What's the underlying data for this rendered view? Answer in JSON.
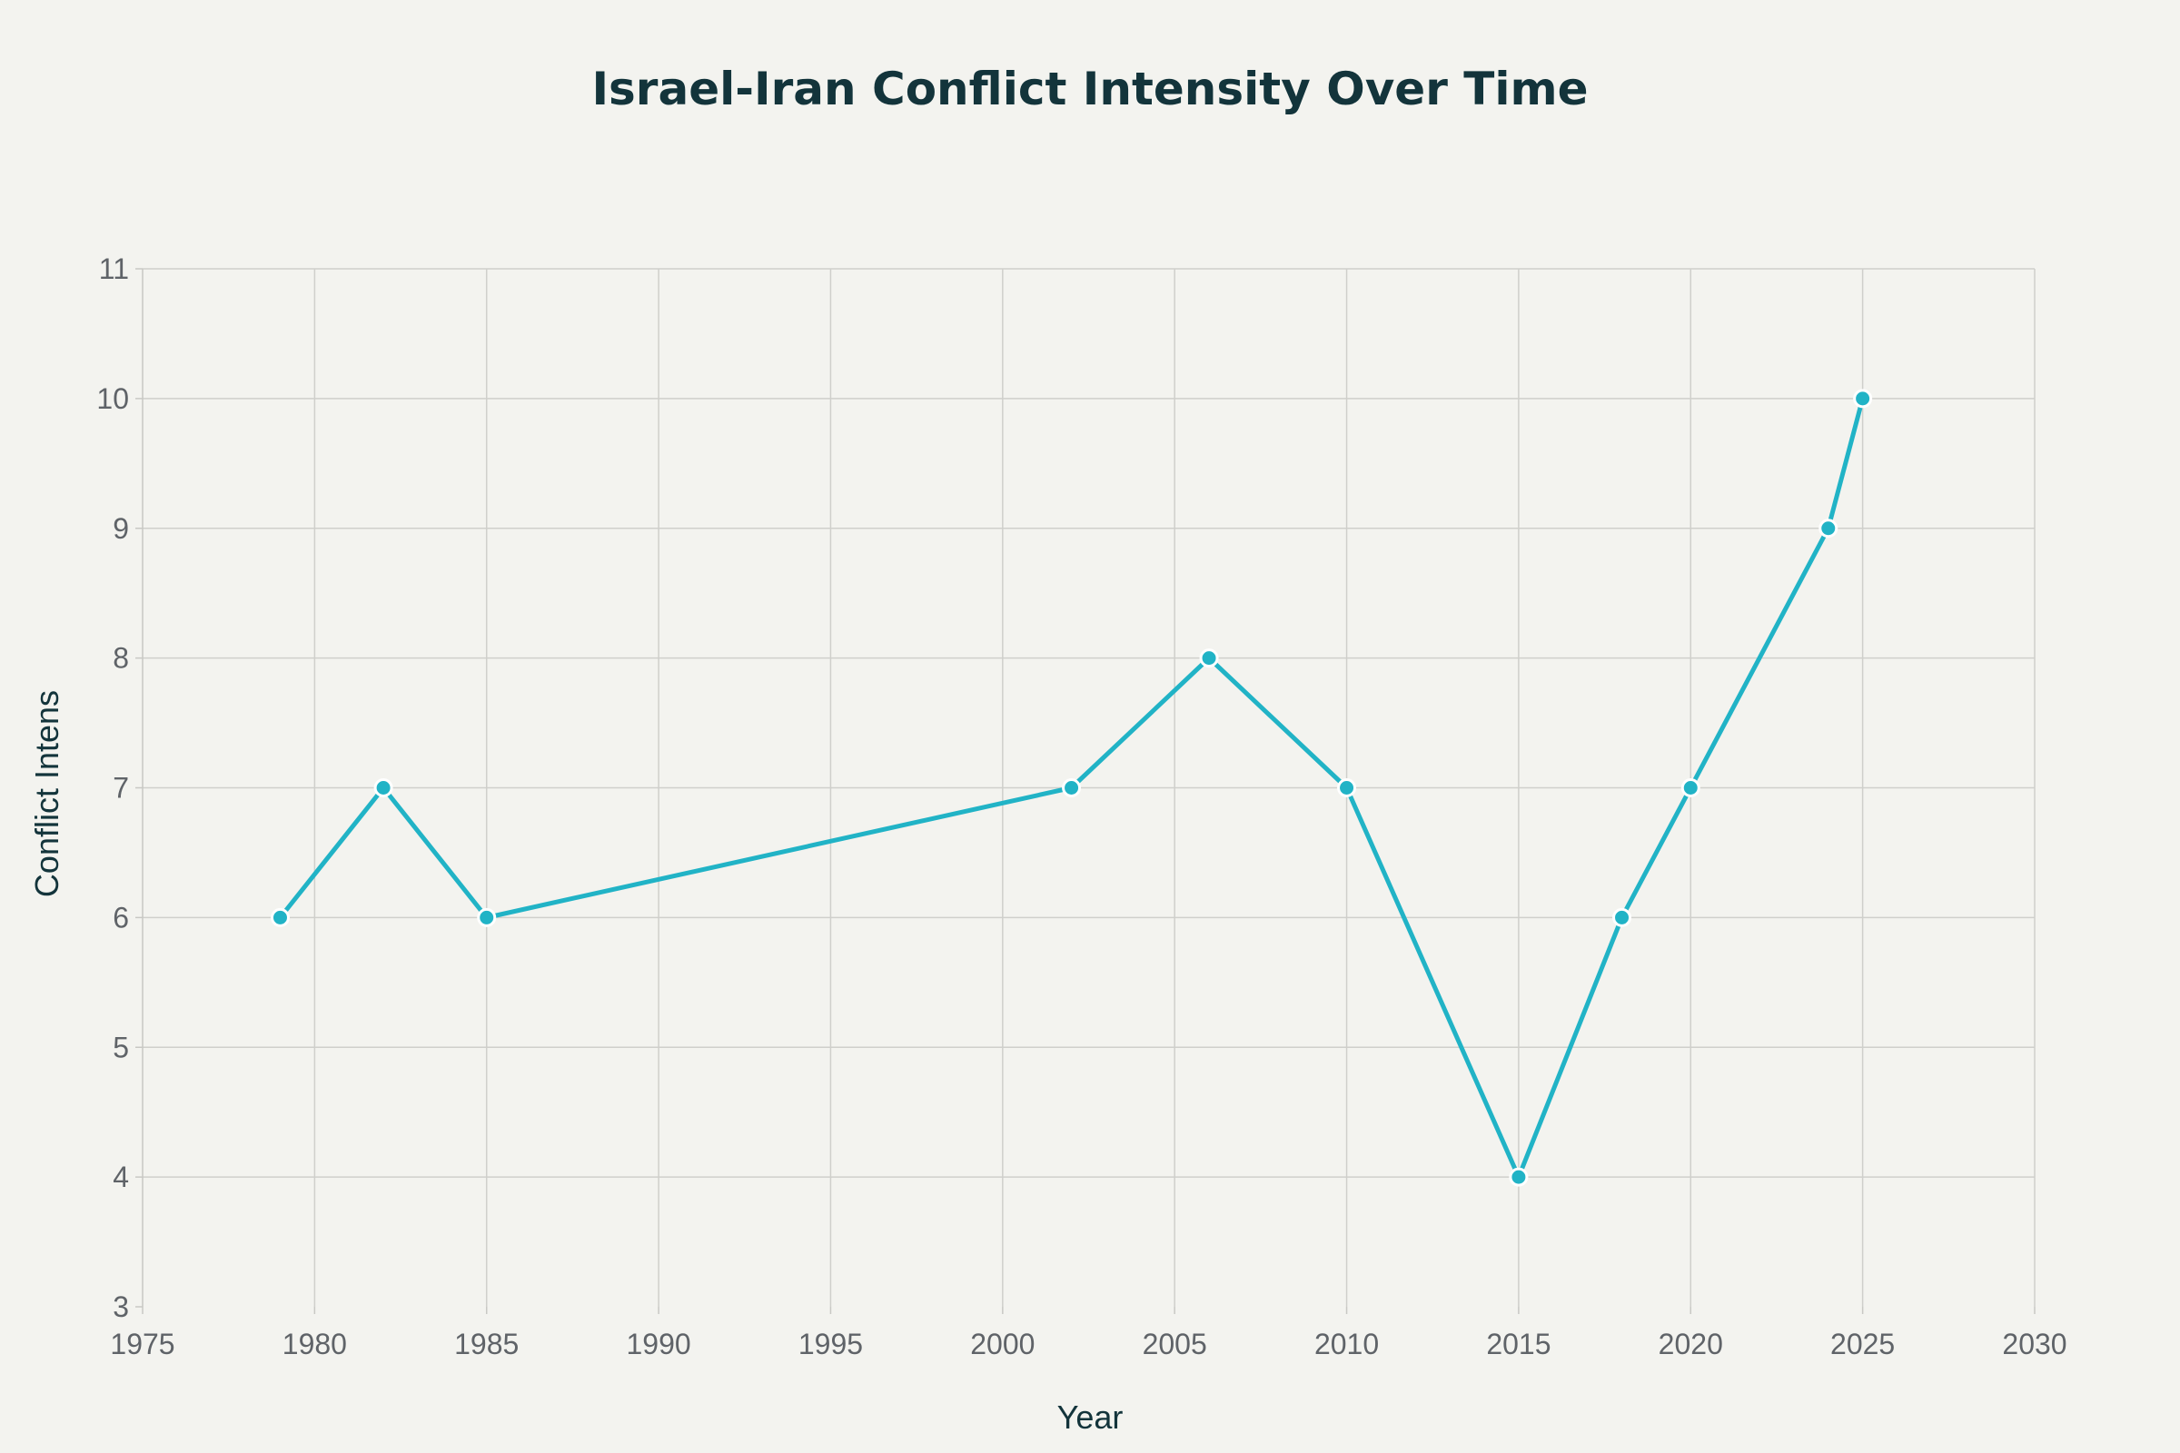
{
  "chart_data": {
    "type": "line",
    "title": "Israel-Iran Conflict Intensity Over Time",
    "xlabel": "Year",
    "ylabel": "Conflict Intens",
    "xlim": [
      1975,
      2030
    ],
    "ylim": [
      3,
      11
    ],
    "xticks": [
      1975,
      1980,
      1985,
      1990,
      1995,
      2000,
      2005,
      2010,
      2015,
      2020,
      2025,
      2030
    ],
    "yticks": [
      3,
      4,
      5,
      6,
      7,
      8,
      9,
      10,
      11
    ],
    "grid": true,
    "series": [
      {
        "name": "Conflict Intensity",
        "color": "#21b3c6",
        "x": [
          1979,
          1982,
          1985,
          2002,
          2006,
          2010,
          2015,
          2018,
          2020,
          2024,
          2025
        ],
        "y": [
          6,
          7,
          6,
          7,
          8,
          7,
          4,
          6,
          7,
          9,
          10
        ]
      }
    ]
  }
}
